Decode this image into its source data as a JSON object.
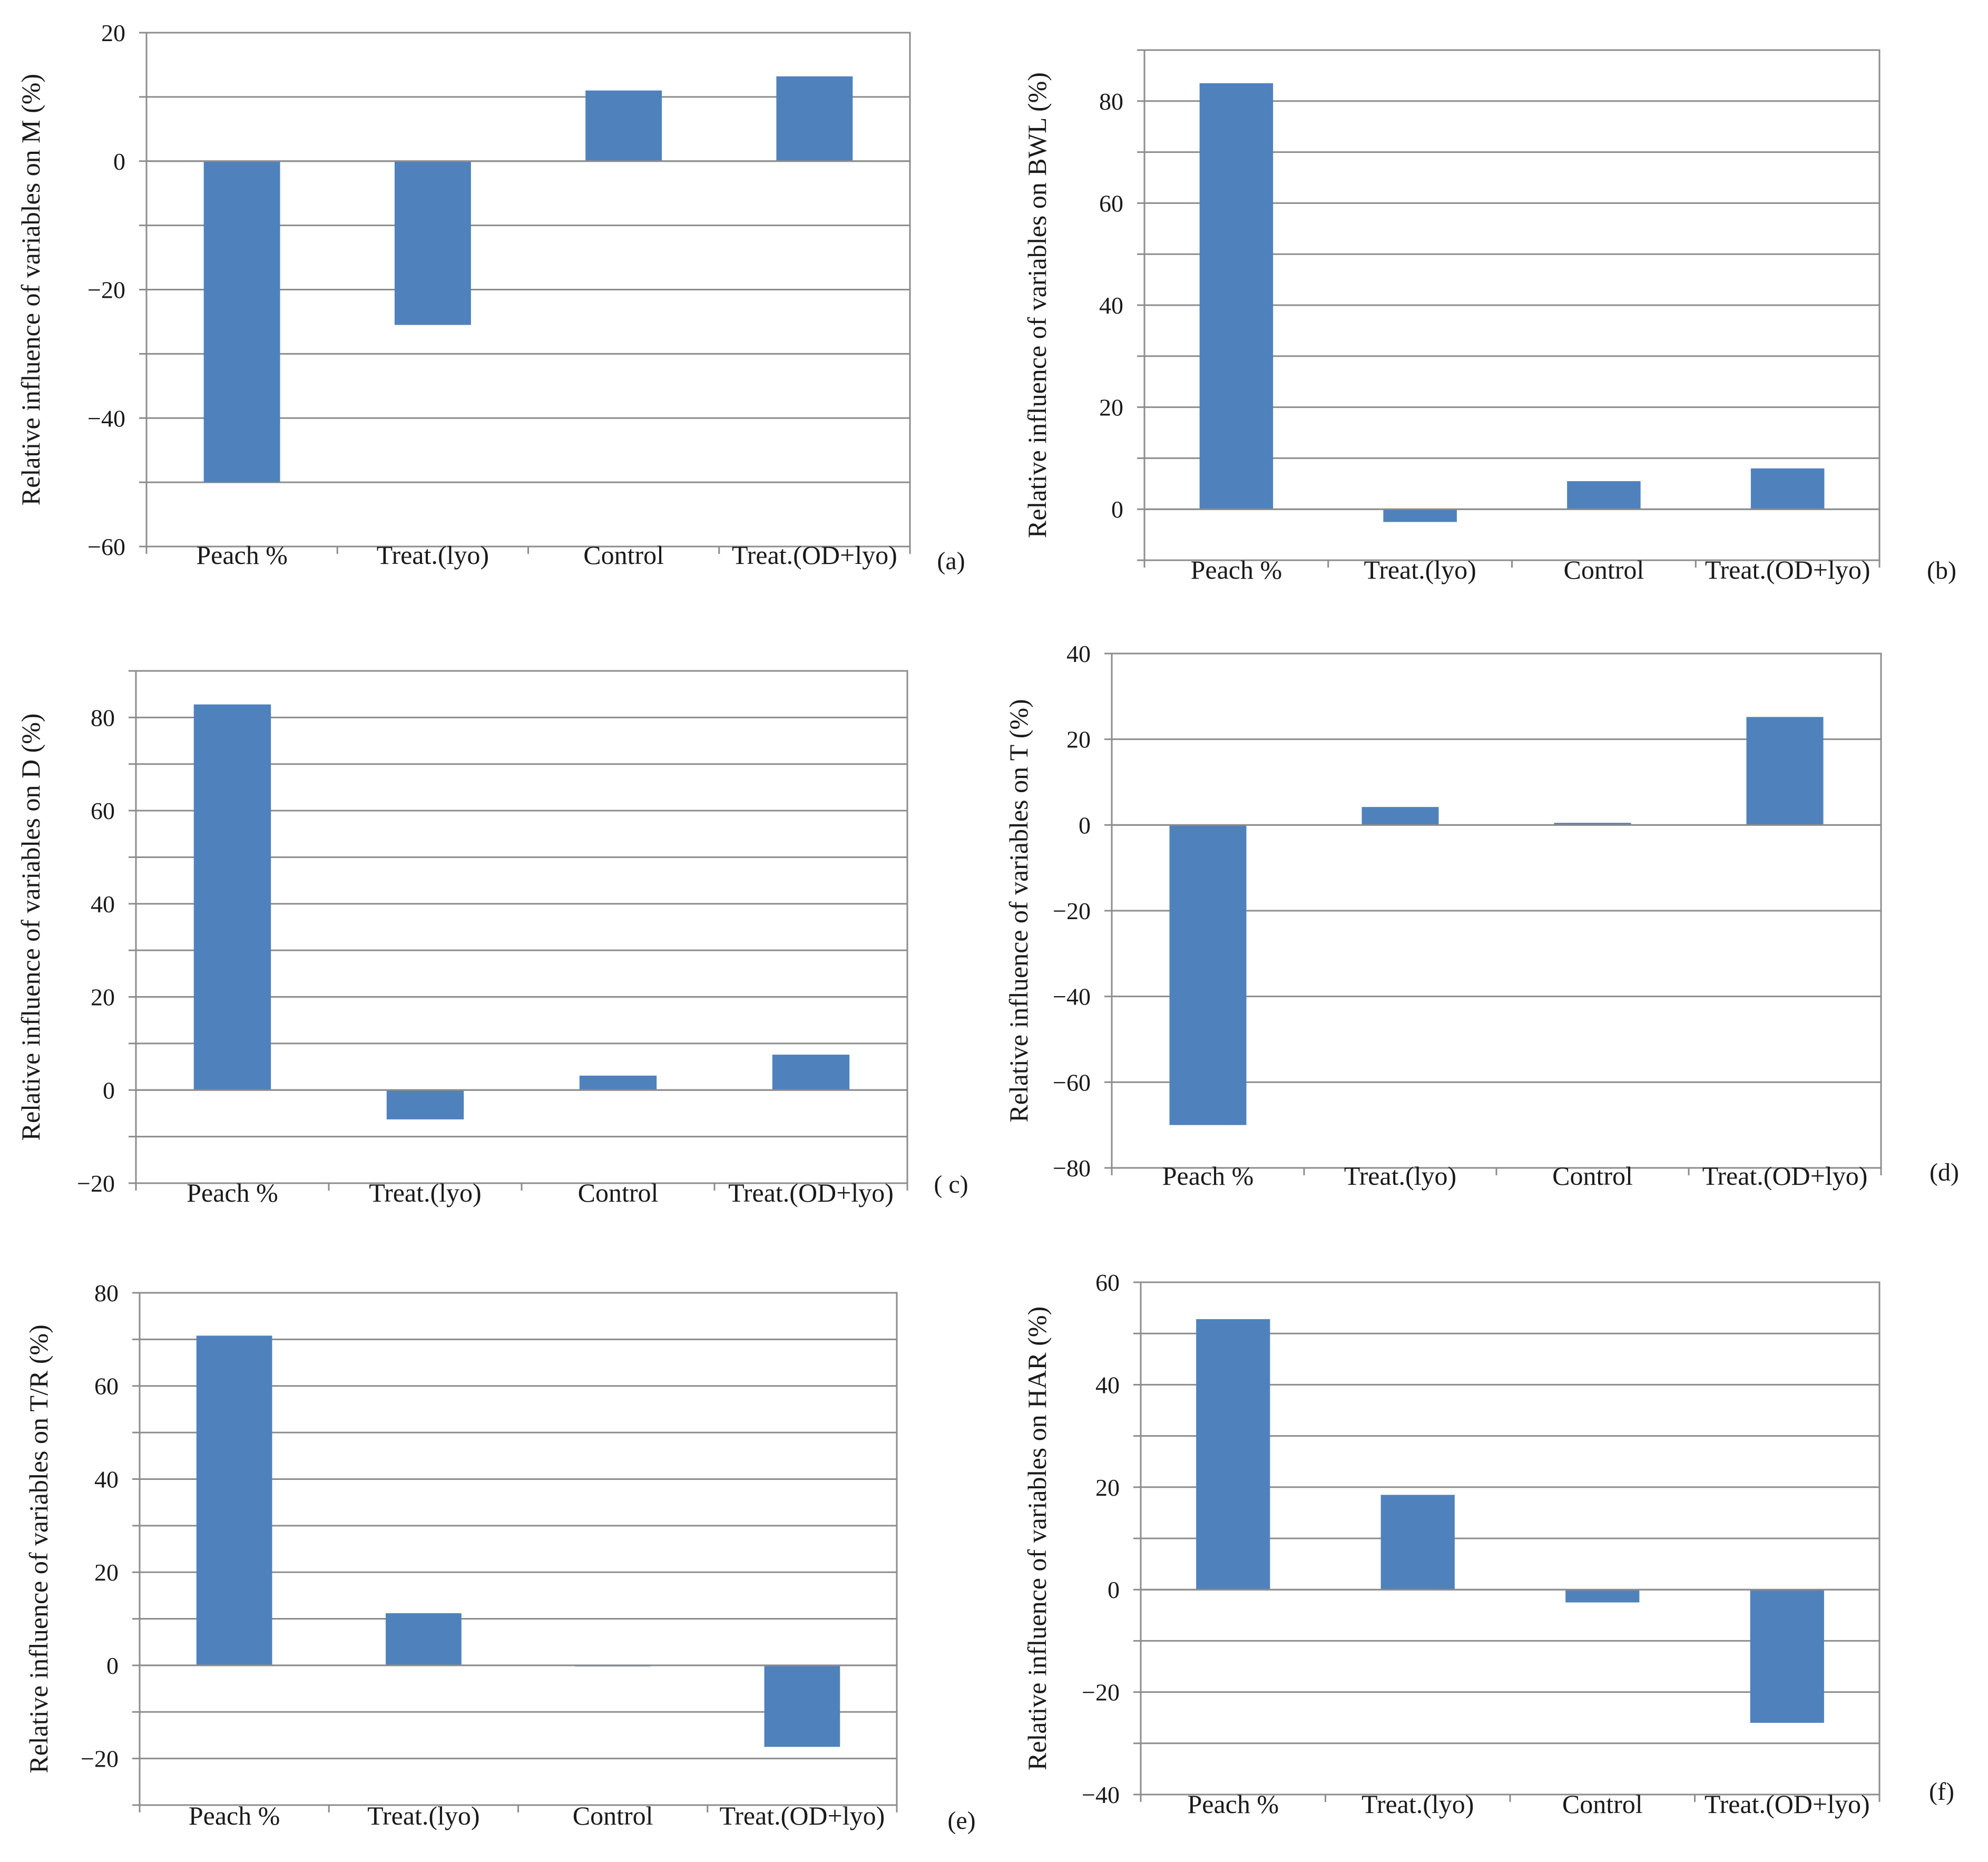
{
  "colors": {
    "bar": "#4F81BD",
    "grid": "#8C8C8C",
    "axis": "#8C8C8C",
    "text": "#1a1a1a"
  },
  "chart_data": [
    {
      "panel": "(a)",
      "type": "bar",
      "categories": [
        "Peach %",
        "Treat.(lyo)",
        "Control",
        "Treat.(OD+lyo)"
      ],
      "values": [
        -50,
        -25.5,
        11,
        13.2
      ],
      "ylabel": "Relative influence of variables on M (%)",
      "ylim": [
        -60,
        20
      ],
      "yticks": [
        20,
        0,
        -20,
        -40,
        -60
      ],
      "ticklabels": [
        "20",
        "0",
        "−20",
        "−40",
        "−60"
      ],
      "minor_step": 10,
      "grid": true
    },
    {
      "panel": "(b)",
      "type": "bar",
      "categories": [
        "Peach %",
        "Treat.(lyo)",
        "Control",
        "Treat.(OD+lyo)"
      ],
      "values": [
        83.5,
        -2.5,
        5.5,
        8
      ],
      "ylabel": "Relative influence of variables on BWL (%)",
      "ylim": [
        -10,
        90
      ],
      "yticks": [
        80,
        60,
        40,
        20,
        0
      ],
      "ticklabels": [
        "80",
        "60",
        "40",
        "20",
        "0"
      ],
      "minor_step": 10,
      "grid": true
    },
    {
      "panel": "( c)",
      "type": "bar",
      "categories": [
        "Peach %",
        "Treat.(lyo)",
        "Control",
        "Treat.(OD+lyo)"
      ],
      "values": [
        82.8,
        -6.3,
        3.1,
        7.6
      ],
      "ylabel": "Relative influence of variables on D (%)",
      "ylim": [
        -20,
        90
      ],
      "yticks": [
        80,
        60,
        40,
        20,
        0,
        -20
      ],
      "ticklabels": [
        "80",
        "60",
        "40",
        "20",
        "0",
        "−20"
      ],
      "minor_step": 10,
      "grid": true
    },
    {
      "panel": "(d)",
      "type": "bar",
      "categories": [
        "Peach %",
        "Treat.(lyo)",
        "Control",
        "Treat.(OD+lyo)"
      ],
      "values": [
        -70,
        4.2,
        0.5,
        25.2
      ],
      "ylabel": "Relative influence of variables on T (%)",
      "ylim": [
        -80,
        40
      ],
      "yticks": [
        40,
        20,
        0,
        -20,
        -40,
        -60,
        -80
      ],
      "ticklabels": [
        "40",
        "20",
        "0",
        "−20",
        "−40",
        "−60",
        "−80"
      ],
      "minor_step": 20,
      "grid": true
    },
    {
      "panel": "(e)",
      "type": "bar",
      "categories": [
        "Peach %",
        "Treat.(lyo)",
        "Control",
        "Treat.(OD+lyo)"
      ],
      "values": [
        70.8,
        11.2,
        -0.2,
        -17.5
      ],
      "ylabel": "Relative influence of variables on T/R (%)",
      "ylim": [
        -30,
        80
      ],
      "yticks": [
        80,
        60,
        40,
        20,
        0,
        -20
      ],
      "ticklabels": [
        "80",
        "60",
        "40",
        "20",
        "0",
        "−20"
      ],
      "minor_step": 10,
      "grid": true
    },
    {
      "panel": "(f)",
      "type": "bar",
      "categories": [
        "Peach %",
        "Treat.(lyo)",
        "Control",
        "Treat.(OD+lyo)"
      ],
      "values": [
        52.8,
        18.5,
        -2.5,
        -26
      ],
      "ylabel": "Relative influence of variables on HAR (%)",
      "ylim": [
        -40,
        60
      ],
      "yticks": [
        60,
        40,
        20,
        0,
        -20,
        -40
      ],
      "ticklabels": [
        "60",
        "40",
        "20",
        "0",
        "−20",
        "−40"
      ],
      "minor_step": 10,
      "grid": true
    }
  ]
}
